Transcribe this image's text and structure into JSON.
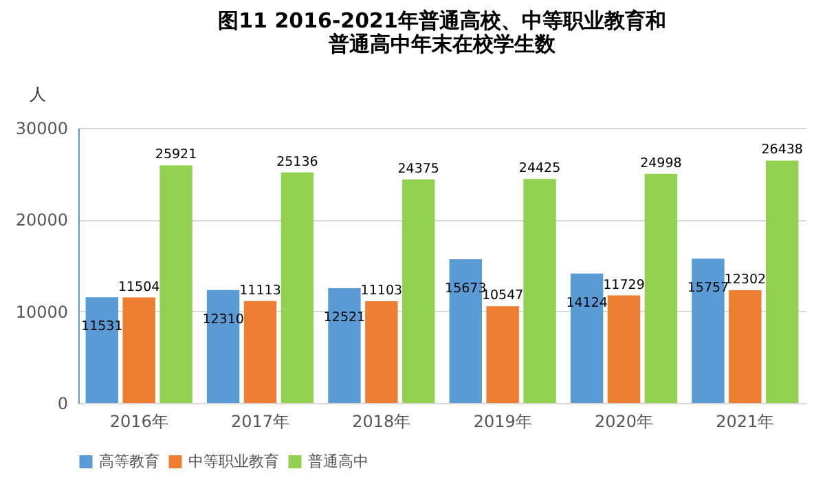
{
  "chart_data": {
    "type": "bar",
    "title": "图11  2016-2021年普通高校、中等职业教育和普通高中年末在校学生数",
    "ylabel": "人",
    "categories": [
      "2016年",
      "2017年",
      "2018年",
      "2019年",
      "2020年",
      "2021年"
    ],
    "series": [
      {
        "name": "高等教育",
        "color": "#5b9bd5",
        "values": [
          11531,
          12310,
          12521,
          15673,
          14124,
          15757
        ]
      },
      {
        "name": "中等职业教育",
        "color": "#ed7d31",
        "values": [
          11504,
          11113,
          11103,
          10547,
          11729,
          12302
        ]
      },
      {
        "name": "普通高中",
        "color": "#92d050",
        "values": [
          25921,
          25136,
          24375,
          24425,
          24998,
          26438
        ]
      }
    ],
    "ylim": [
      0,
      30000
    ],
    "yticks": [
      0,
      10000,
      20000,
      30000
    ],
    "grid": "y",
    "legend": "bottom",
    "data_labels": true
  }
}
